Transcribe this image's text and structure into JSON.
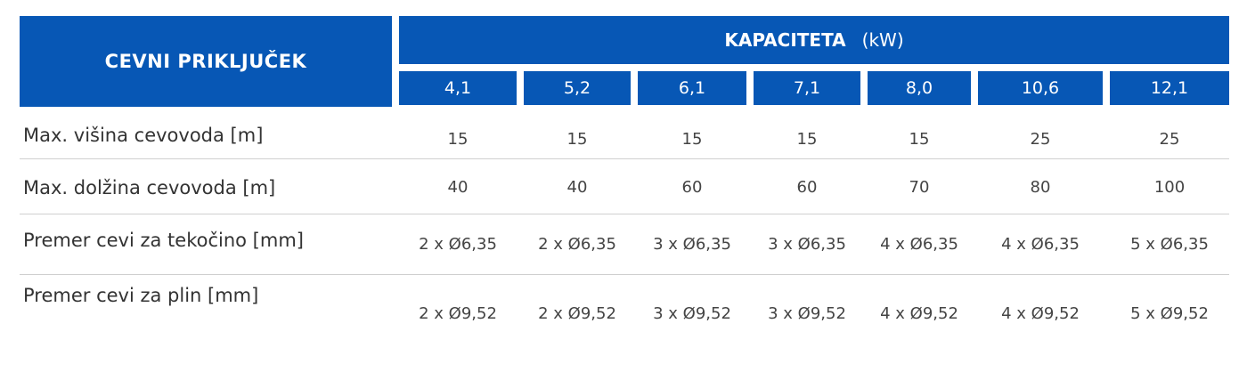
{
  "header": {
    "left": "CEVNI PRIKLJUČEK",
    "title": "KAPACITETA",
    "unit": "(kW)",
    "capacities": [
      "4,1",
      "5,2",
      "6,1",
      "7,1",
      "8,0",
      "10,6",
      "12,1"
    ]
  },
  "rows": [
    {
      "label": "Max. višina cevovoda [m]",
      "values": [
        15,
        15,
        15,
        15,
        15,
        25,
        25
      ]
    },
    {
      "label": "Max. dolžina cevovoda [m]",
      "values": [
        40,
        40,
        60,
        60,
        70,
        80,
        100
      ]
    },
    {
      "label": "Premer cevi za tekočino [mm]",
      "values": [
        "2 x Ø6,35",
        "2 x Ø6,35",
        "3 x Ø6,35",
        "3 x Ø6,35",
        "4 x Ø6,35",
        "4 x Ø6,35",
        "5 x Ø6,35"
      ]
    },
    {
      "label": "Premer cevi za plin [mm]",
      "values": [
        "2 x Ø9,52",
        "2 x Ø9,52",
        "3 x Ø9,52",
        "3 x Ø9,52",
        "4 x Ø9,52",
        "4 x Ø9,52",
        "5 x Ø9,52"
      ]
    }
  ]
}
